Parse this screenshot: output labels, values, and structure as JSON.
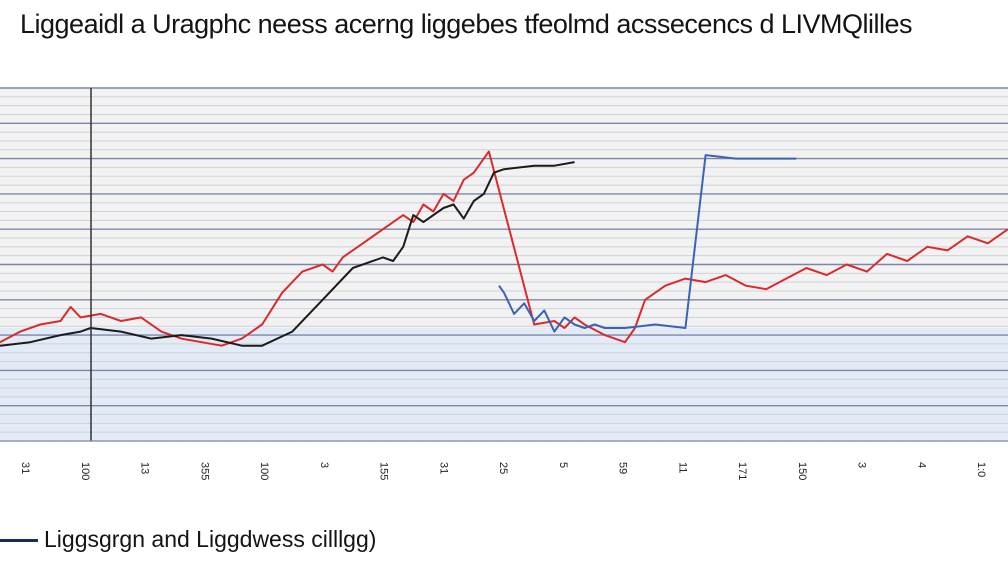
{
  "chart_data": {
    "type": "line",
    "title": "Liggeaidl a Uragphc neess acerng liggebes tfeolmd acssecencs d LIVMQlilles",
    "xlabel": "",
    "ylabel": "",
    "xlim": [
      0,
      100
    ],
    "ylim": [
      0,
      100
    ],
    "grid": true,
    "x_tick_labels": [
      "31",
      "100",
      "13",
      "355",
      "100",
      "3",
      "155",
      "31",
      "25",
      "5",
      "59",
      "11",
      "171",
      "150",
      "3",
      "4",
      "1:0"
    ],
    "legend_position": "bottom-left",
    "legend": [
      {
        "label": "Liggsgrgn and Liggdwess cilllgg)",
        "color": "#1c2d55"
      }
    ],
    "series": [
      {
        "name": "red",
        "color": "#d92b2b",
        "x": [
          0,
          2,
          4,
          6,
          7,
          8,
          10,
          12,
          14,
          16,
          18,
          20,
          22,
          24,
          26,
          28,
          30,
          32,
          33,
          34,
          36,
          38,
          40,
          41,
          42,
          43,
          44,
          45,
          46,
          47,
          48,
          48.5,
          53,
          55,
          56,
          57,
          58,
          60,
          62,
          63,
          64,
          66,
          68,
          70,
          72,
          74,
          76,
          78,
          80,
          82,
          84,
          86,
          88,
          90,
          92,
          94,
          96,
          98,
          100
        ],
        "y": [
          28,
          31,
          33,
          34,
          38,
          35,
          36,
          34,
          35,
          31,
          29,
          28,
          27,
          29,
          33,
          42,
          48,
          50,
          48,
          52,
          56,
          60,
          64,
          62,
          67,
          65,
          70,
          68,
          74,
          76,
          80,
          82,
          33,
          34,
          32,
          35,
          33,
          30,
          28,
          32,
          40,
          44,
          46,
          45,
          47,
          44,
          43,
          46,
          49,
          47,
          50,
          48,
          53,
          51,
          55,
          54,
          58,
          56,
          60
        ]
      },
      {
        "name": "black",
        "color": "#1b1b1b",
        "x": [
          0,
          3,
          6,
          8,
          9,
          12,
          15,
          18,
          21,
          24,
          26,
          29,
          32,
          35,
          38,
          39,
          40,
          41,
          42,
          44,
          45,
          46,
          47,
          48,
          49,
          50,
          53,
          55,
          57
        ],
        "y": [
          27,
          28,
          30,
          31,
          32,
          31,
          29,
          30,
          29,
          27,
          27,
          31,
          40,
          49,
          52,
          51,
          55,
          64,
          62,
          66,
          67,
          63,
          68,
          70,
          76,
          77,
          78,
          78,
          79
        ]
      },
      {
        "name": "blue",
        "color": "#3a63b5",
        "x": [
          49.5,
          50,
          51,
          52,
          53,
          54,
          55,
          56,
          57,
          58,
          59,
          60,
          62,
          65,
          68,
          70,
          73,
          76,
          79
        ],
        "y": [
          44,
          42,
          36,
          39,
          34,
          37,
          31,
          35,
          33,
          32,
          33,
          32,
          32,
          33,
          32,
          81,
          80,
          80,
          80
        ]
      }
    ]
  }
}
